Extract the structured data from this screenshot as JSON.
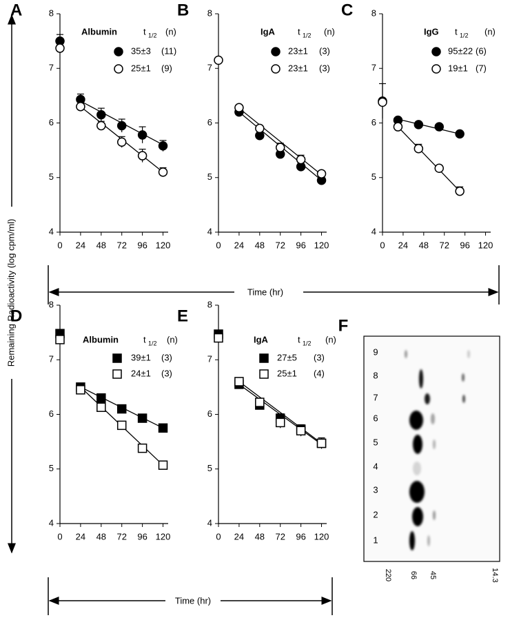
{
  "figure": {
    "y_label": "Remaining Radioactivity (log cpm/ml)",
    "x_label_top": "Time (hr)",
    "x_label_bottom": "Time (hr)"
  },
  "chart_data": [
    {
      "type": "scatter",
      "panel": "A",
      "legend_title": "Albumin",
      "halflife_label": "t",
      "halflife_sub": "1/2",
      "n_label": "(n)",
      "xlim": [
        0,
        126
      ],
      "xticks": [
        0,
        24,
        48,
        72,
        96,
        120
      ],
      "ylim": [
        4,
        8
      ],
      "yticks": [
        4,
        5,
        6,
        7,
        8
      ],
      "series": [
        {
          "name": "35±3",
          "n": "(11)",
          "marker": "circle",
          "filled": true,
          "color": "#000000",
          "x": [
            0,
            24,
            48,
            72,
            96,
            120
          ],
          "values": [
            7.5,
            6.43,
            6.15,
            5.95,
            5.78,
            5.58
          ],
          "errors": [
            0.12,
            0.1,
            0.12,
            0.12,
            0.15,
            0.1
          ],
          "fit_x": [
            24,
            120
          ],
          "fit_y": [
            6.4,
            5.6
          ]
        },
        {
          "name": "25±1",
          "n": "(9)",
          "marker": "circle",
          "filled": false,
          "color": "#000000",
          "x": [
            0,
            24,
            48,
            72,
            96,
            120
          ],
          "values": [
            7.37,
            6.3,
            5.95,
            5.65,
            5.4,
            5.1
          ],
          "errors": [
            0.05,
            0.05,
            0.08,
            0.1,
            0.12,
            0.08
          ],
          "fit_x": [
            24,
            120
          ],
          "fit_y": [
            6.3,
            5.1
          ]
        }
      ]
    },
    {
      "type": "scatter",
      "panel": "B",
      "legend_title": "IgA",
      "halflife_label": "t",
      "halflife_sub": "1/2",
      "n_label": "(n)",
      "xlim": [
        0,
        126
      ],
      "xticks": [
        0,
        24,
        48,
        72,
        96,
        120
      ],
      "ylim": [
        4,
        8
      ],
      "yticks": [
        4,
        5,
        6,
        7,
        8
      ],
      "series": [
        {
          "name": "23±1",
          "n": "(3)",
          "marker": "circle",
          "filled": true,
          "color": "#000000",
          "x": [
            24,
            48,
            72,
            96,
            120
          ],
          "values": [
            6.2,
            5.77,
            5.43,
            5.2,
            4.95
          ],
          "errors": [
            0.04,
            0.05,
            0.06,
            0.06,
            0.04
          ],
          "fit_x": [
            24,
            120
          ],
          "fit_y": [
            6.2,
            4.95
          ]
        },
        {
          "name": "23±1",
          "n": "(3)",
          "marker": "circle",
          "filled": false,
          "color": "#000000",
          "x": [
            0,
            24,
            48,
            72,
            96,
            120
          ],
          "values": [
            7.15,
            6.28,
            5.9,
            5.55,
            5.33,
            5.07
          ],
          "errors": [
            0.03,
            0.04,
            0.05,
            0.08,
            0.08,
            0.05
          ],
          "fit_x": [
            24,
            120
          ],
          "fit_y": [
            6.27,
            5.05
          ]
        }
      ]
    },
    {
      "type": "scatter",
      "panel": "C",
      "legend_title": "IgG",
      "halflife_label": "t",
      "halflife_sub": "1/2",
      "n_label": "(n)",
      "xlim": [
        0,
        126
      ],
      "xticks": [
        0,
        24,
        48,
        72,
        96,
        120
      ],
      "ylim": [
        4,
        8
      ],
      "yticks": [
        4,
        5,
        6,
        7,
        8
      ],
      "series": [
        {
          "name": "95±22",
          "n": "(6)",
          "marker": "circle",
          "filled": true,
          "color": "#000000",
          "x": [
            0,
            18,
            42,
            66,
            90
          ],
          "values": [
            6.4,
            6.05,
            5.97,
            5.93,
            5.8
          ],
          "errors": [
            0.32,
            0.04,
            0.04,
            0.04,
            0.04
          ],
          "fit_x": [
            18,
            90
          ],
          "fit_y": [
            6.07,
            5.8
          ]
        },
        {
          "name": "19±1",
          "n": "(7)",
          "marker": "circle",
          "filled": false,
          "color": "#000000",
          "x": [
            0,
            18,
            42,
            66,
            90
          ],
          "values": [
            6.38,
            5.93,
            5.53,
            5.17,
            4.75
          ],
          "errors": [
            0.05,
            0.04,
            0.08,
            0.05,
            0.08
          ],
          "fit_x": [
            18,
            90
          ],
          "fit_y": [
            5.93,
            4.75
          ]
        }
      ]
    },
    {
      "type": "scatter",
      "panel": "D",
      "legend_title": "Albumin",
      "halflife_label": "t",
      "halflife_sub": "1/2",
      "n_label": "(n)",
      "xlim": [
        0,
        126
      ],
      "xticks": [
        0,
        24,
        48,
        72,
        96,
        120
      ],
      "ylim": [
        4,
        8
      ],
      "yticks": [
        4,
        5,
        6,
        7,
        8
      ],
      "series": [
        {
          "name": "39±1",
          "n": "(3)",
          "marker": "square",
          "filled": true,
          "color": "#000000",
          "x": [
            0,
            24,
            48,
            72,
            96,
            120
          ],
          "values": [
            7.48,
            6.5,
            6.3,
            6.1,
            5.93,
            5.75
          ],
          "errors": [
            0.03,
            0.03,
            0.03,
            0.03,
            0.03,
            0.03
          ],
          "fit_x": [
            24,
            120
          ],
          "fit_y": [
            6.5,
            5.75
          ]
        },
        {
          "name": "24±1",
          "n": "(3)",
          "marker": "square",
          "filled": false,
          "color": "#000000",
          "x": [
            0,
            24,
            48,
            72,
            96,
            120
          ],
          "values": [
            7.37,
            6.45,
            6.13,
            5.8,
            5.38,
            5.07
          ],
          "errors": [
            0.03,
            0.03,
            0.03,
            0.03,
            0.03,
            0.05
          ],
          "fit_x": [
            24,
            120
          ],
          "fit_y": [
            6.5,
            5.07
          ]
        }
      ]
    },
    {
      "type": "scatter",
      "panel": "E",
      "legend_title": "IgA",
      "halflife_label": "t",
      "halflife_sub": "1/2",
      "n_label": "(n)",
      "xlim": [
        0,
        126
      ],
      "xticks": [
        0,
        24,
        48,
        72,
        96,
        120
      ],
      "ylim": [
        4,
        8
      ],
      "yticks": [
        4,
        5,
        6,
        7,
        8
      ],
      "series": [
        {
          "name": "27±5",
          "n": "(3)",
          "marker": "square",
          "filled": true,
          "color": "#000000",
          "x": [
            0,
            24,
            48,
            72,
            96,
            120
          ],
          "values": [
            7.47,
            6.55,
            6.17,
            5.93,
            5.73,
            5.47
          ],
          "errors": [
            0.03,
            0.03,
            0.04,
            0.08,
            0.08,
            0.1
          ],
          "fit_x": [
            24,
            120
          ],
          "fit_y": [
            6.55,
            5.45
          ]
        },
        {
          "name": "25±1",
          "n": "(4)",
          "marker": "square",
          "filled": false,
          "color": "#000000",
          "x": [
            0,
            24,
            48,
            72,
            96,
            120
          ],
          "values": [
            7.4,
            6.6,
            6.22,
            5.85,
            5.7,
            5.47
          ],
          "errors": [
            0.03,
            0.03,
            0.05,
            0.1,
            0.1,
            0.08
          ],
          "fit_x": [
            24,
            120
          ],
          "fit_y": [
            6.6,
            5.47
          ]
        }
      ]
    }
  ],
  "gel": {
    "panel": "F",
    "lanes": [
      "1",
      "2",
      "3",
      "4",
      "5",
      "6",
      "7",
      "8",
      "9"
    ],
    "markers": [
      "220",
      "66",
      "45",
      "14.3"
    ]
  }
}
